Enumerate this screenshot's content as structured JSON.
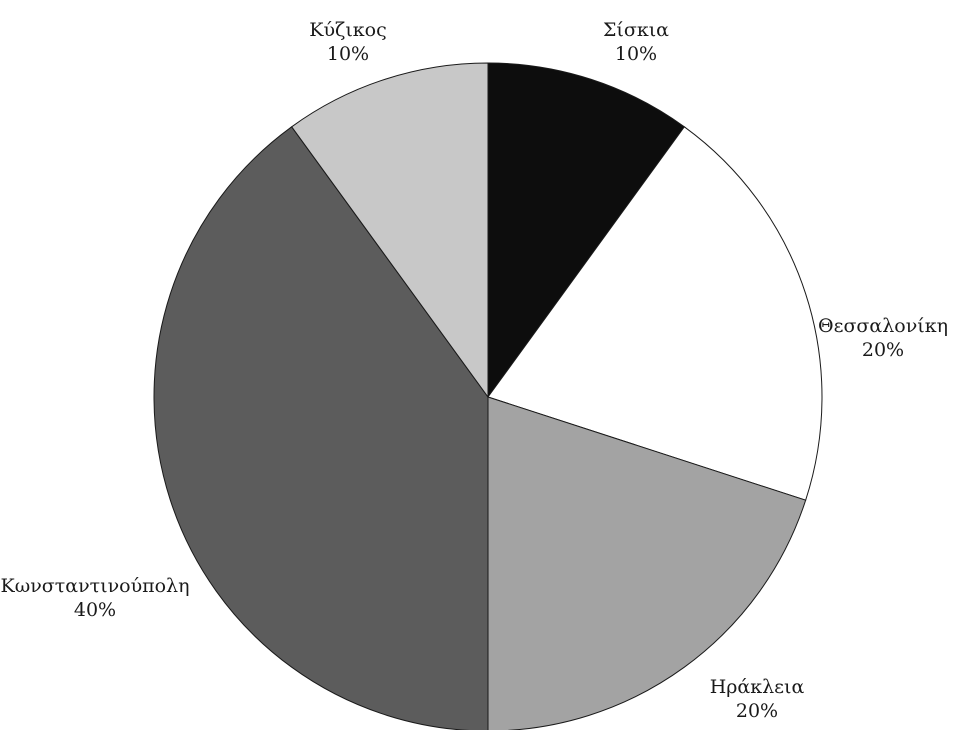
{
  "chart_data": {
    "type": "pie",
    "title": "",
    "slices": [
      {
        "label": "Σίσκια",
        "value": 10,
        "value_label": "10%",
        "color": "#0d0d0d"
      },
      {
        "label": "Θεσσαλονίκη",
        "value": 20,
        "value_label": "20%",
        "color": "#ffffff"
      },
      {
        "label": "Ηράκλεια",
        "value": 20,
        "value_label": "20%",
        "color": "#a3a3a3"
      },
      {
        "label": "Κωνσταντινούπολη",
        "value": 40,
        "value_label": "40%",
        "color": "#5c5c5c"
      },
      {
        "label": "Κύζικος",
        "value": 10,
        "value_label": "10%",
        "color": "#c8c8c8"
      }
    ]
  }
}
